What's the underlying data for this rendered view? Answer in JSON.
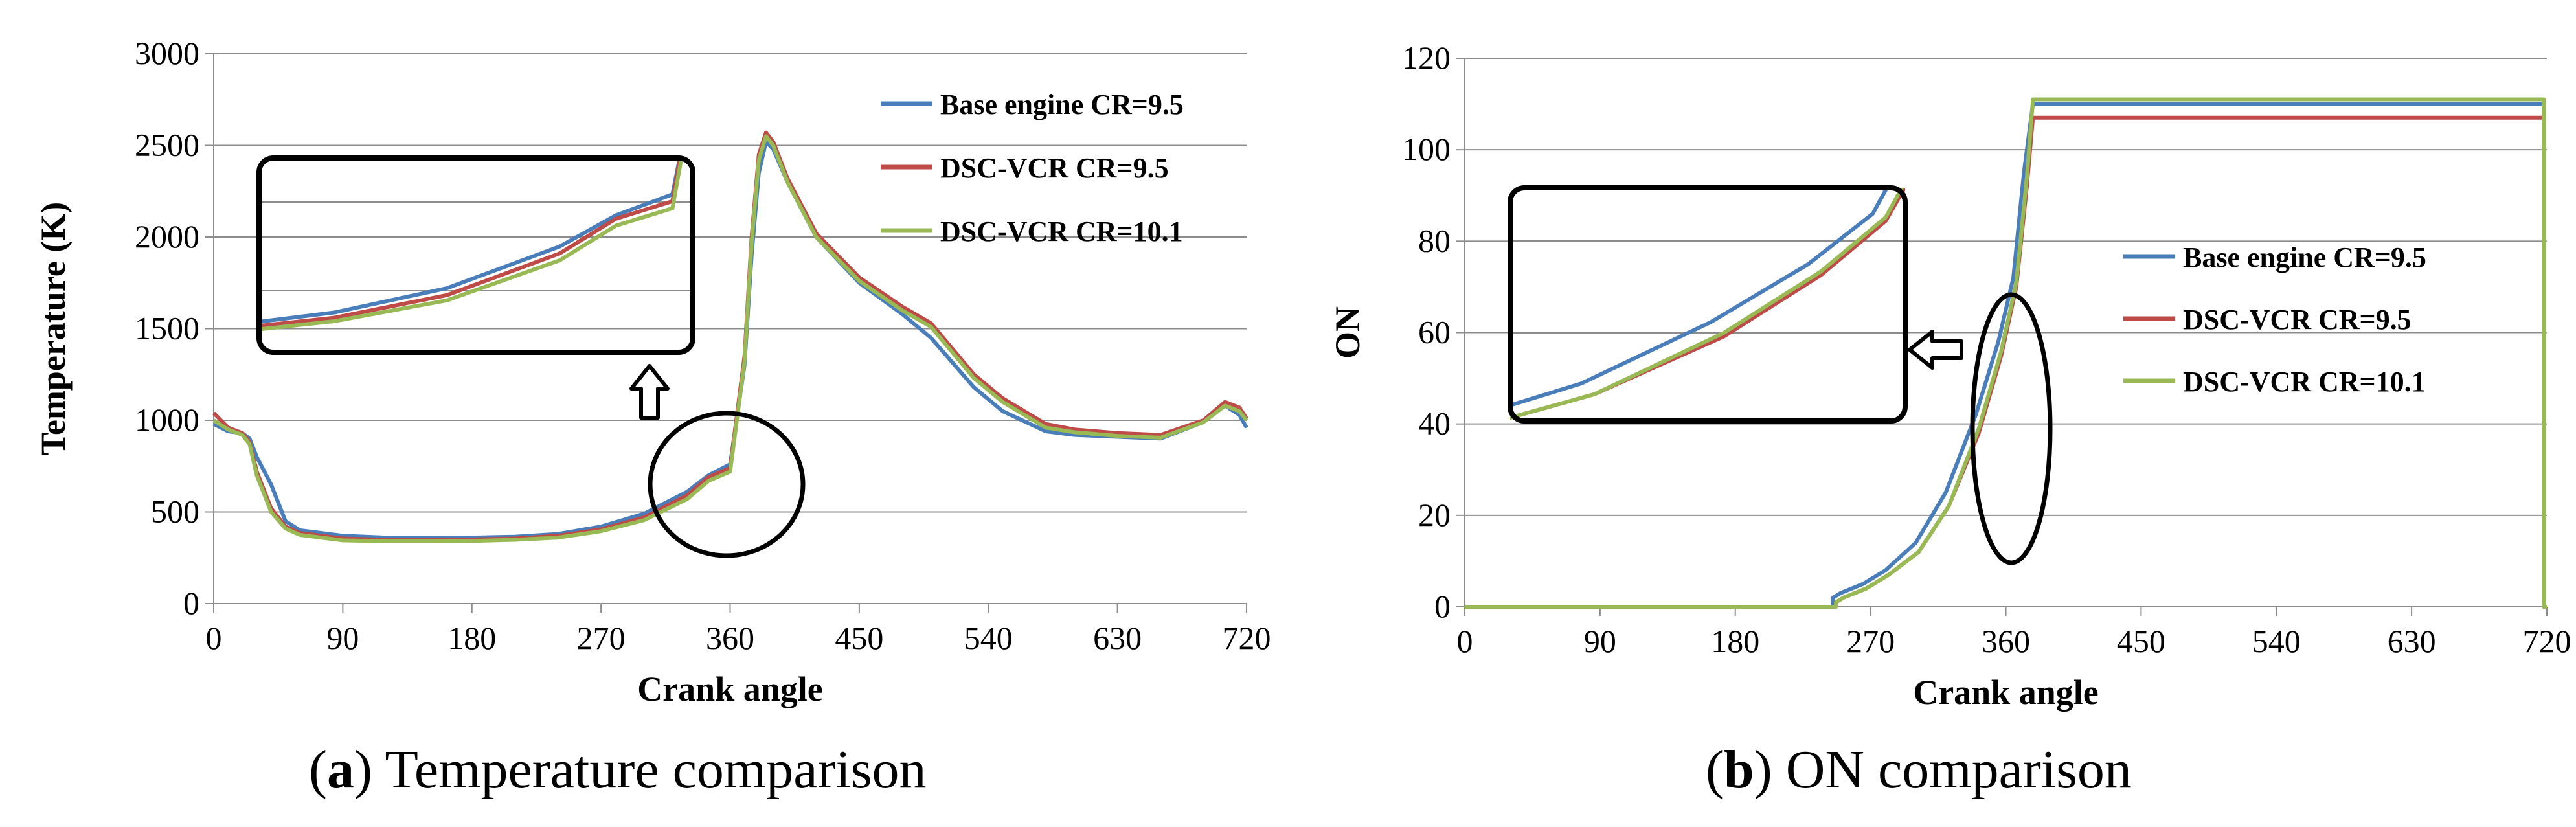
{
  "chart_data": [
    {
      "type": "line",
      "title": "",
      "xlabel": "Crank angle",
      "ylabel": "Temperature (K)",
      "xlim": [
        0,
        720
      ],
      "ylim": [
        0,
        3000
      ],
      "x_ticks": [
        "0",
        "90",
        "180",
        "270",
        "360",
        "450",
        "540",
        "630",
        "720"
      ],
      "y_ticks": [
        "0",
        "500",
        "1000",
        "1500",
        "2000",
        "2500",
        "3000"
      ],
      "grid": "horizontal",
      "legend_position": "top-right",
      "caption_label": "a",
      "caption_text": "Temperature comparison",
      "series": [
        {
          "name": "Base engine CR=9.5",
          "color": "#4a7ebb",
          "x": [
            0,
            10,
            20,
            25,
            30,
            40,
            50,
            60,
            90,
            120,
            150,
            180,
            210,
            240,
            270,
            300,
            330,
            345,
            360,
            370,
            375,
            380,
            385,
            390,
            400,
            420,
            450,
            480,
            500,
            530,
            550,
            580,
            600,
            630,
            660,
            690,
            705,
            715,
            720
          ],
          "y": [
            980,
            940,
            930,
            900,
            800,
            650,
            450,
            400,
            370,
            360,
            360,
            360,
            365,
            380,
            420,
            490,
            610,
            700,
            760,
            1300,
            1900,
            2350,
            2520,
            2480,
            2300,
            2000,
            1750,
            1580,
            1450,
            1180,
            1050,
            940,
            920,
            910,
            900,
            990,
            1080,
            1030,
            960
          ]
        },
        {
          "name": "DSC-VCR CR=9.5",
          "color": "#be4b48",
          "x": [
            0,
            10,
            20,
            25,
            30,
            40,
            50,
            60,
            90,
            120,
            150,
            180,
            210,
            240,
            270,
            300,
            330,
            345,
            360,
            370,
            375,
            380,
            385,
            390,
            400,
            420,
            450,
            480,
            500,
            530,
            550,
            580,
            600,
            630,
            660,
            690,
            705,
            715,
            720
          ],
          "y": [
            1040,
            960,
            930,
            880,
            720,
            520,
            420,
            385,
            355,
            348,
            348,
            350,
            355,
            370,
            405,
            470,
            590,
            690,
            740,
            1350,
            2000,
            2450,
            2570,
            2520,
            2320,
            2020,
            1780,
            1620,
            1530,
            1250,
            1120,
            980,
            950,
            930,
            920,
            1000,
            1100,
            1070,
            1010
          ]
        },
        {
          "name": "DSC-VCR CR=10.1",
          "color": "#98b954",
          "x": [
            0,
            10,
            20,
            25,
            30,
            40,
            50,
            60,
            90,
            120,
            150,
            180,
            210,
            240,
            270,
            300,
            330,
            345,
            360,
            370,
            375,
            380,
            385,
            390,
            400,
            420,
            450,
            480,
            500,
            530,
            550,
            580,
            600,
            630,
            660,
            690,
            705,
            715,
            720
          ],
          "y": [
            1000,
            950,
            920,
            870,
            700,
            500,
            410,
            375,
            345,
            340,
            340,
            342,
            348,
            360,
            395,
            455,
            570,
            670,
            720,
            1320,
            1970,
            2420,
            2550,
            2500,
            2300,
            2000,
            1760,
            1600,
            1510,
            1230,
            1100,
            960,
            935,
            915,
            905,
            990,
            1080,
            1050,
            1000
          ]
        }
      ],
      "annotations": []
    },
    {
      "type": "line",
      "title": "",
      "xlabel": "Crank angle",
      "ylabel": "ON",
      "xlim": [
        0,
        720
      ],
      "ylim": [
        0,
        120
      ],
      "x_ticks": [
        "0",
        "90",
        "180",
        "270",
        "360",
        "450",
        "540",
        "630",
        "720"
      ],
      "y_ticks": [
        "0",
        "20",
        "40",
        "60",
        "80",
        "100",
        "120"
      ],
      "grid": "horizontal",
      "legend_position": "right",
      "caption_label": "b",
      "caption_text": "ON comparison",
      "series": [
        {
          "name": "Base engine CR=9.5",
          "color": "#4a7ebb",
          "x": [
            0,
            245,
            245,
            250,
            265,
            280,
            300,
            320,
            340,
            355,
            365,
            372,
            378,
            380,
            718,
            718,
            720
          ],
          "y": [
            0,
            0,
            2,
            3,
            5,
            8,
            14,
            25,
            42,
            58,
            72,
            95,
            110,
            110,
            110,
            0,
            0
          ]
        },
        {
          "name": "DSC-VCR CR=9.5",
          "color": "#be4b48",
          "x": [
            0,
            247,
            247,
            252,
            267,
            282,
            302,
            322,
            342,
            357,
            367,
            374,
            378,
            380,
            718,
            718,
            720
          ],
          "y": [
            0,
            0,
            1,
            2,
            4,
            7,
            12,
            22,
            38,
            55,
            70,
            92,
            107,
            107,
            107,
            0,
            0
          ]
        },
        {
          "name": "DSC-VCR CR=10.1",
          "color": "#98b954",
          "x": [
            0,
            247,
            247,
            252,
            267,
            282,
            302,
            322,
            342,
            357,
            367,
            374,
            378,
            380,
            718,
            718,
            720
          ],
          "y": [
            0,
            0,
            1,
            2,
            4,
            7,
            12,
            22,
            39,
            56,
            71,
            94,
            111,
            111,
            111,
            0,
            0
          ]
        }
      ],
      "annotations": []
    }
  ]
}
